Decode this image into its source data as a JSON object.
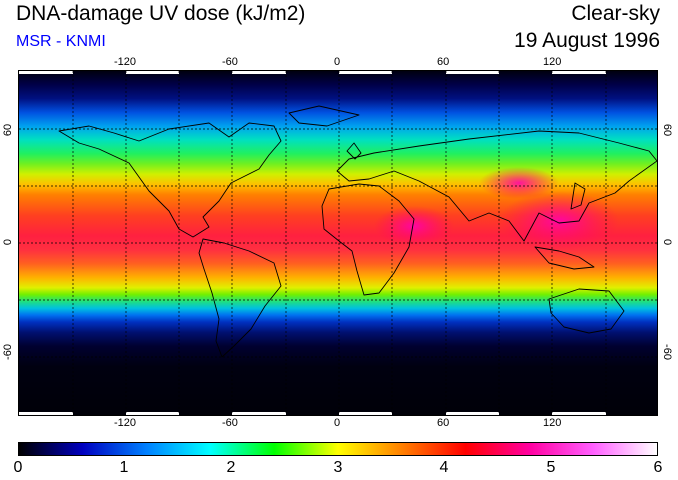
{
  "header": {
    "title": "DNA-damage UV dose (kJ/m2)",
    "subtitle": "MSR - KNMI",
    "subtitle_color": "#0000ff",
    "condition": "Clear-sky",
    "date": "19 August 1996"
  },
  "map": {
    "projection": "equirectangular",
    "grid": true,
    "lon_ticks": [
      "-120",
      "-60",
      "0",
      "60",
      "120"
    ],
    "lat_ticks": [
      "60",
      "0",
      "-60"
    ]
  },
  "colorbar": {
    "labels": [
      "0",
      "1",
      "2",
      "3",
      "4",
      "5",
      "6"
    ],
    "colors": [
      "#000000",
      "#0000c0",
      "#0080ff",
      "#00ffff",
      "#00ff00",
      "#ffff00",
      "#ff8000",
      "#ff0000",
      "#ff00a0",
      "#ff60ff",
      "#ffffff"
    ]
  }
}
